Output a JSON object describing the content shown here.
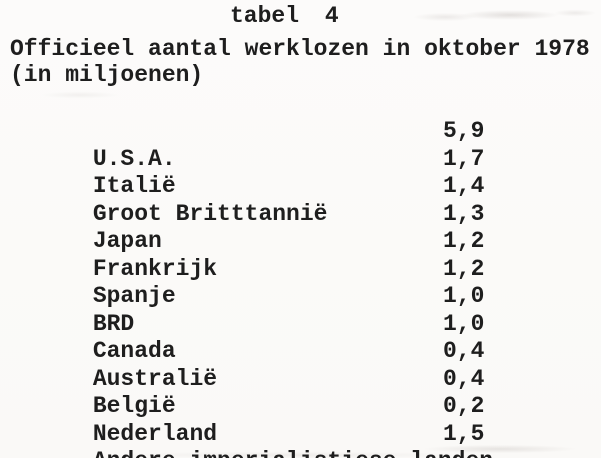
{
  "document": {
    "title": "tabel 4",
    "heading": "Officieel aantal werklozen in oktober 1978",
    "unit_note": "(in miljoenen)"
  },
  "table": {
    "rows": [
      {
        "country": "U.S.A.",
        "value": "5,9"
      },
      {
        "country": "Italië",
        "value": "1,7"
      },
      {
        "country": "Groot Britttannië",
        "value": "1,4"
      },
      {
        "country": "Japan",
        "value": "1,3"
      },
      {
        "country": "Frankrijk",
        "value": "1,2"
      },
      {
        "country": "Spanje",
        "value": "1,2"
      },
      {
        "country": "BRD",
        "value": "1,0"
      },
      {
        "country": "Canada",
        "value": "1,0"
      },
      {
        "country": "Australië",
        "value": "0,4"
      },
      {
        "country": "België",
        "value": "0,4"
      },
      {
        "country": "Nederland",
        "value": "0,2"
      },
      {
        "country": "Andere imperialistiese landen",
        "value": "1,5"
      }
    ]
  },
  "colors": {
    "paper": "#fbfaf8",
    "ink": "#1e1e1e"
  }
}
